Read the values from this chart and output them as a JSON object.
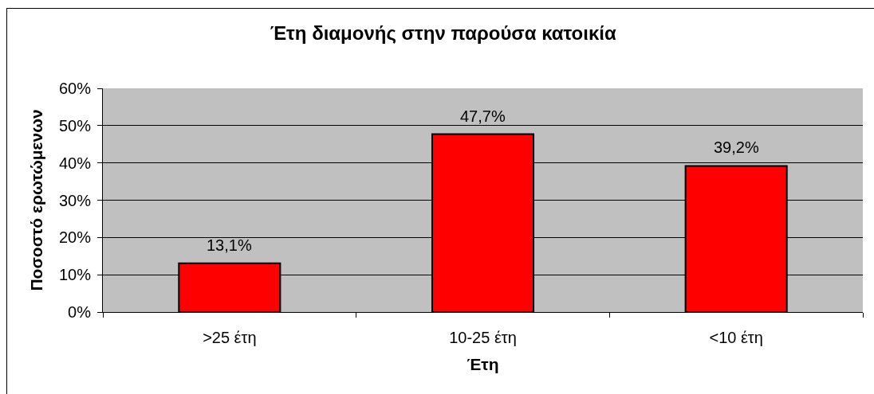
{
  "chart_data": {
    "type": "bar",
    "title": "Έτη διαμονής στην παρούσα κατοικία",
    "xlabel": "Έτη",
    "ylabel": "Ποσοστό ερωτώμενων",
    "categories": [
      ">25 έτη",
      "10-25 έτη",
      "<10 έτη"
    ],
    "values": [
      13.1,
      47.7,
      39.2
    ],
    "value_labels": [
      "13,1%",
      "47,7%",
      "39,2%"
    ],
    "color": "#ff0000",
    "ylim": [
      0,
      60
    ],
    "yticks": [
      {
        "value": 0,
        "label": "0%"
      },
      {
        "value": 10,
        "label": "10%"
      },
      {
        "value": 20,
        "label": "20%"
      },
      {
        "value": 30,
        "label": "30%"
      },
      {
        "value": 40,
        "label": "40%"
      },
      {
        "value": 50,
        "label": "50%"
      },
      {
        "value": 60,
        "label": "60%"
      }
    ],
    "grid": "y"
  }
}
